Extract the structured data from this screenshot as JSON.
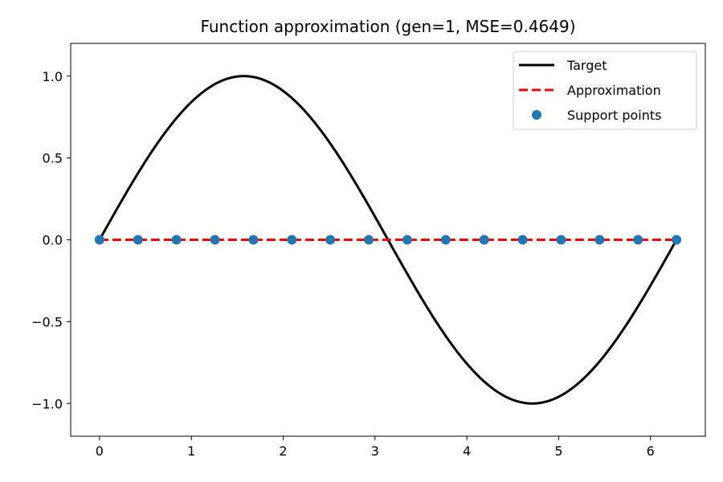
{
  "chart_data": {
    "type": "line",
    "title": "Function approximation (gen=1, MSE=0.4649)",
    "xlabel": "",
    "ylabel": "",
    "xlim": [
      -0.314,
      6.597
    ],
    "ylim": [
      -1.2,
      1.2
    ],
    "x_ticks": [
      0,
      1,
      2,
      3,
      4,
      5,
      6
    ],
    "x_tick_labels": [
      "0",
      "1",
      "2",
      "3",
      "4",
      "5",
      "6"
    ],
    "y_ticks": [
      -1.0,
      -0.5,
      0.0,
      0.5,
      1.0
    ],
    "y_tick_labels": [
      "−1.0",
      "−0.5",
      "0.0",
      "0.5",
      "1.0"
    ],
    "grid": false,
    "legend_position": "top-right",
    "series": [
      {
        "name": "Target",
        "kind": "line",
        "style": "solid",
        "color": "#000000",
        "function": "sin(x)",
        "x_range": [
          0,
          6.2832
        ]
      },
      {
        "name": "Approximation",
        "kind": "line",
        "style": "dashed",
        "color": "#ff0000",
        "x": [
          0,
          6.2832
        ],
        "y": [
          0,
          0
        ]
      },
      {
        "name": "Support points",
        "kind": "scatter",
        "color": "#1f77b4",
        "x": [
          0,
          0.4189,
          0.8378,
          1.2566,
          1.6755,
          2.0944,
          2.5133,
          2.9322,
          3.351,
          3.7699,
          4.1888,
          4.6077,
          5.0265,
          5.4454,
          5.8643,
          6.2832
        ],
        "y": [
          0,
          0,
          0,
          0,
          0,
          0,
          0,
          0,
          0,
          0,
          0,
          0,
          0,
          0,
          0,
          0
        ]
      }
    ]
  }
}
